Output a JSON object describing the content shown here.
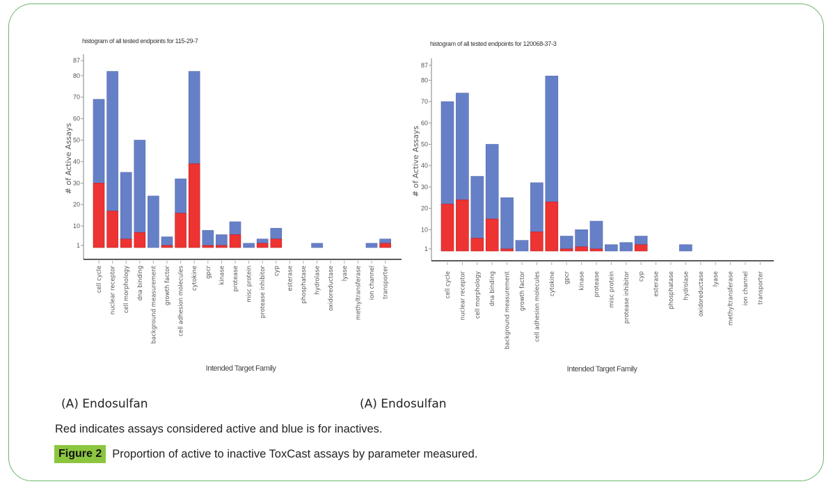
{
  "chart_data": [
    {
      "type": "bar",
      "stacked": true,
      "title": "histogram of all tested endpoints for 115-29-7",
      "xlabel": "Intended Target Family",
      "ylabel": "# of Active Assays",
      "ylim": [
        0,
        90
      ],
      "yticks": [
        1,
        10,
        20,
        30,
        40,
        50,
        60,
        70,
        80,
        87
      ],
      "categories": [
        "cell cycle",
        "nuclear receptor",
        "cell morphology",
        "dna binding",
        "background measurement",
        "growth factor",
        "cell adhesion molecules",
        "cytokine",
        "gpcr",
        "kinase",
        "protease",
        "misc protein",
        "protease inhibitor",
        "cyp",
        "esterase",
        "phosphatase",
        "hydrolase",
        "oxidoreductase",
        "lyase",
        "methyltransferase",
        "ion channel",
        "transporter"
      ],
      "series": [
        {
          "name": "active",
          "color": "#ee3333",
          "values": [
            30,
            17,
            4,
            7,
            0,
            1,
            16,
            39,
            1,
            1,
            6,
            0,
            2,
            4,
            0,
            0,
            0,
            0,
            0,
            0,
            0,
            2
          ]
        },
        {
          "name": "inactive",
          "color": "#6680c8",
          "values": [
            39,
            65,
            31,
            43,
            24,
            4,
            16,
            43,
            7,
            5,
            6,
            2,
            2,
            5,
            0,
            0,
            2,
            0,
            0,
            0,
            2,
            2
          ]
        }
      ],
      "totals": [
        69,
        82,
        35,
        50,
        24,
        5,
        32,
        82,
        8,
        6,
        12,
        2,
        4,
        9,
        0,
        0,
        2,
        0,
        0,
        0,
        2,
        4
      ],
      "grid": false,
      "legend": "none"
    },
    {
      "type": "bar",
      "stacked": true,
      "title": "histogram of all tested endpoints for 120068-37-3",
      "xlabel": "Intended Target Family",
      "ylabel": "# of Active Assays",
      "ylim": [
        0,
        90
      ],
      "yticks": [
        1,
        10,
        20,
        30,
        40,
        50,
        60,
        70,
        80,
        87
      ],
      "categories": [
        "cell cycle",
        "nuclear receptor",
        "cell morphology",
        "dna binding",
        "background measurement",
        "growth factor",
        "cell adhesion molecules",
        "cytokine",
        "gpcr",
        "kinase",
        "protease",
        "misc protein",
        "protease inhibitor",
        "cyp",
        "esterase",
        "phosphatase",
        "hydrolase",
        "oxidoreductase",
        "lyase",
        "methyltransferase",
        "ion channel",
        "transporter"
      ],
      "series": [
        {
          "name": "active",
          "color": "#ee3333",
          "values": [
            22,
            24,
            6,
            15,
            1,
            0,
            9,
            23,
            1,
            2,
            1,
            0,
            0,
            3,
            0,
            0,
            0,
            0,
            0,
            0,
            0,
            0
          ]
        },
        {
          "name": "inactive",
          "color": "#6680c8",
          "values": [
            48,
            50,
            29,
            35,
            24,
            5,
            23,
            59,
            6,
            8,
            13,
            3,
            4,
            4,
            0,
            0,
            3,
            0,
            0,
            0,
            0,
            0
          ]
        }
      ],
      "totals": [
        70,
        74,
        35,
        50,
        25,
        5,
        32,
        82,
        7,
        10,
        14,
        3,
        4,
        7,
        0,
        0,
        3,
        0,
        0,
        0,
        0,
        0
      ],
      "grid": false,
      "legend": "none"
    }
  ],
  "captions": {
    "panel_left": "(A) Endosulfan",
    "panel_right": "(A) Endosulfan",
    "note": "Red indicates assays considered active and blue is for inactives.",
    "figure_label": "Figure 2",
    "figure_text": "Proportion of active to inactive ToxCast assays by parameter measured."
  },
  "colors": {
    "frame": "#6bb56b",
    "figure_badge": "#8cc63f",
    "active": "#ee3333",
    "inactive": "#6680c8"
  }
}
